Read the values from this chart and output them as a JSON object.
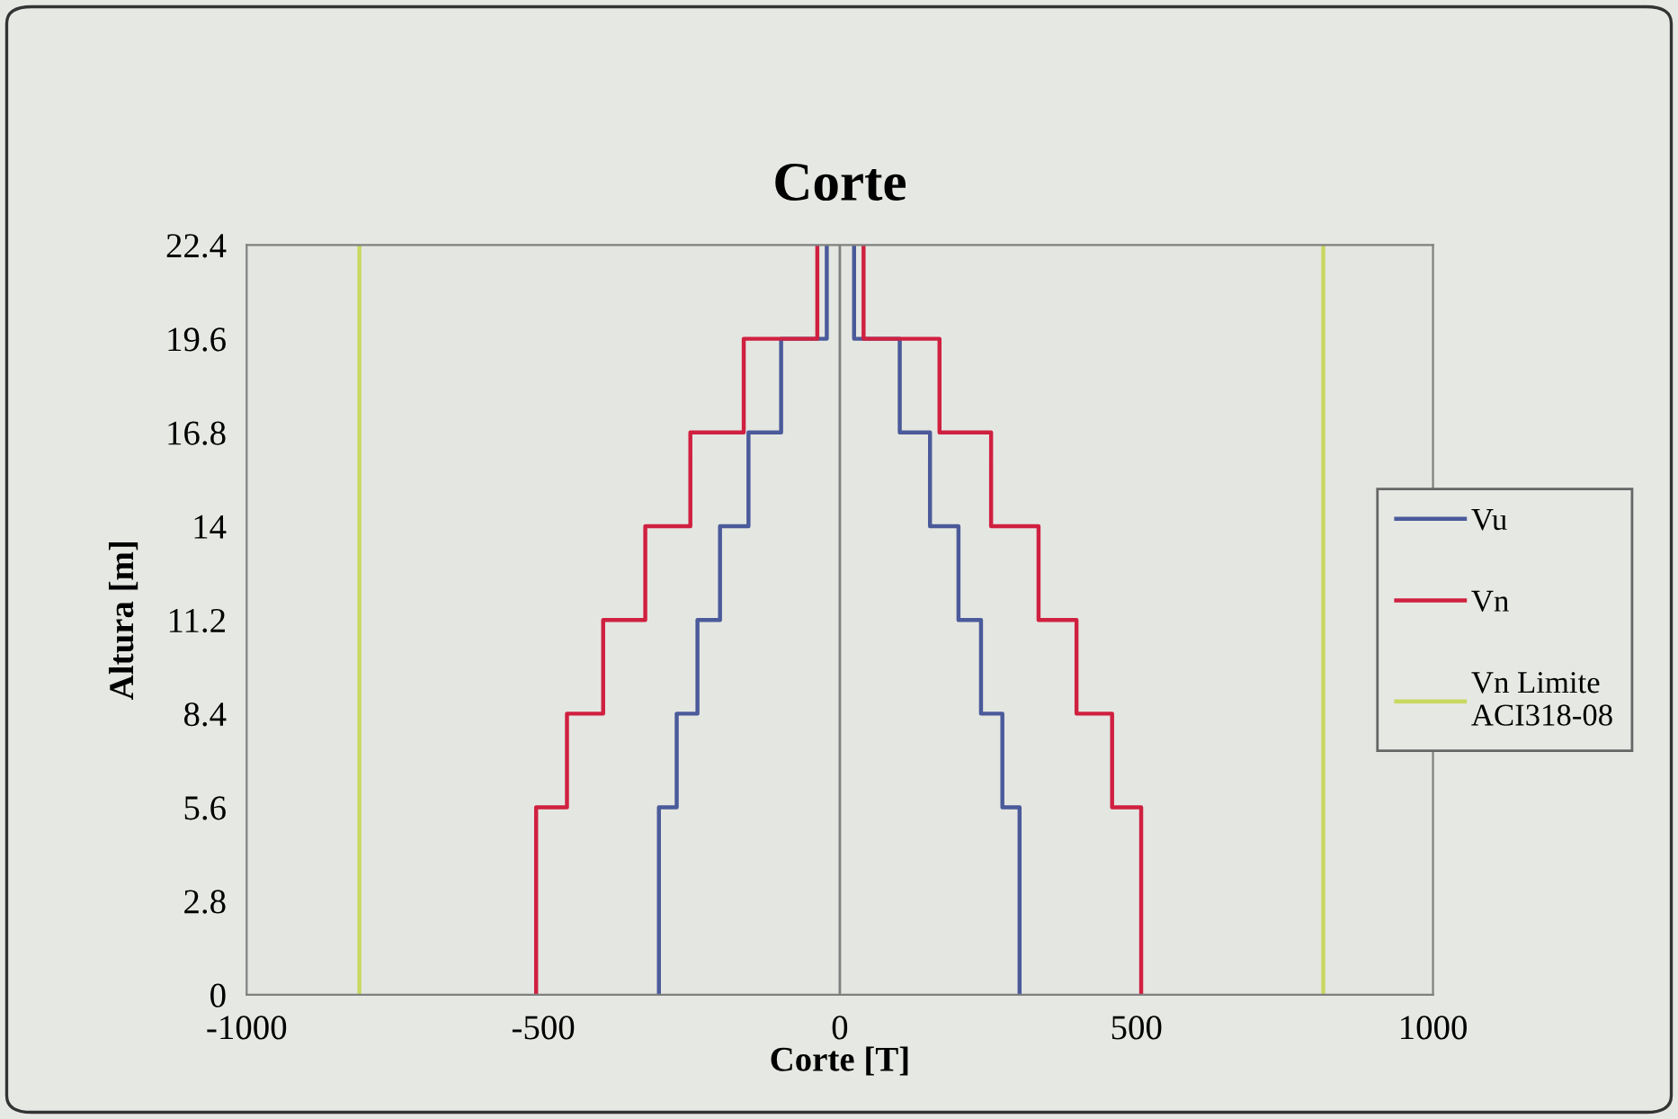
{
  "chart_data": {
    "type": "line",
    "title": "Corte",
    "xlabel": "Corte [T]",
    "ylabel": "Altura [m]",
    "xlim": [
      -1000,
      1000
    ],
    "xticks": [
      -1000,
      -500,
      0,
      500,
      1000
    ],
    "ylim": [
      0,
      22.4
    ],
    "yticks": [
      0,
      2.8,
      5.6,
      8.4,
      11.2,
      14,
      16.8,
      19.6,
      22.4
    ],
    "grid": false,
    "legend": "right",
    "marker": "none",
    "line_style": "solid",
    "ref_lines": [
      {
        "axis": "x",
        "value": 0,
        "color": "#808080"
      }
    ],
    "series": [
      {
        "name": "Vu",
        "color": "#4a5a9a",
        "x": [
          -305,
          -305,
          -275,
          -275,
          -240,
          -240,
          -202,
          -202,
          -154,
          -154,
          -99,
          -99,
          -22,
          -22,
          null,
          303,
          303,
          274,
          274,
          238,
          238,
          200,
          200,
          152,
          152,
          101,
          101,
          24,
          24
        ],
        "values": [
          0,
          5.6,
          5.6,
          8.4,
          8.4,
          11.2,
          11.2,
          14,
          14,
          16.8,
          16.8,
          19.6,
          19.6,
          22.4,
          null,
          0,
          5.6,
          5.6,
          8.4,
          8.4,
          11.2,
          11.2,
          14,
          14,
          16.8,
          16.8,
          19.6,
          19.6,
          22.4
        ]
      },
      {
        "name": "Vn",
        "color": "#d02040",
        "x": [
          -512,
          -512,
          -460,
          -460,
          -399,
          -399,
          -328,
          -328,
          -252,
          -252,
          -162,
          -162,
          -38,
          -38,
          null,
          508,
          508,
          459,
          459,
          399,
          399,
          335,
          335,
          255,
          255,
          168,
          168,
          40,
          40
        ],
        "values": [
          0,
          5.6,
          5.6,
          8.4,
          8.4,
          11.2,
          11.2,
          14,
          14,
          16.8,
          16.8,
          19.6,
          19.6,
          22.4,
          null,
          0,
          5.6,
          5.6,
          8.4,
          8.4,
          11.2,
          11.2,
          14,
          14,
          16.8,
          16.8,
          19.6,
          19.6,
          22.4
        ]
      },
      {
        "name": "Vn Limite\nACI318-08",
        "color": "#c8d860",
        "x": [
          -810,
          -810,
          null,
          815,
          815
        ],
        "values": [
          0,
          22.4,
          null,
          0,
          22.4
        ]
      }
    ]
  }
}
